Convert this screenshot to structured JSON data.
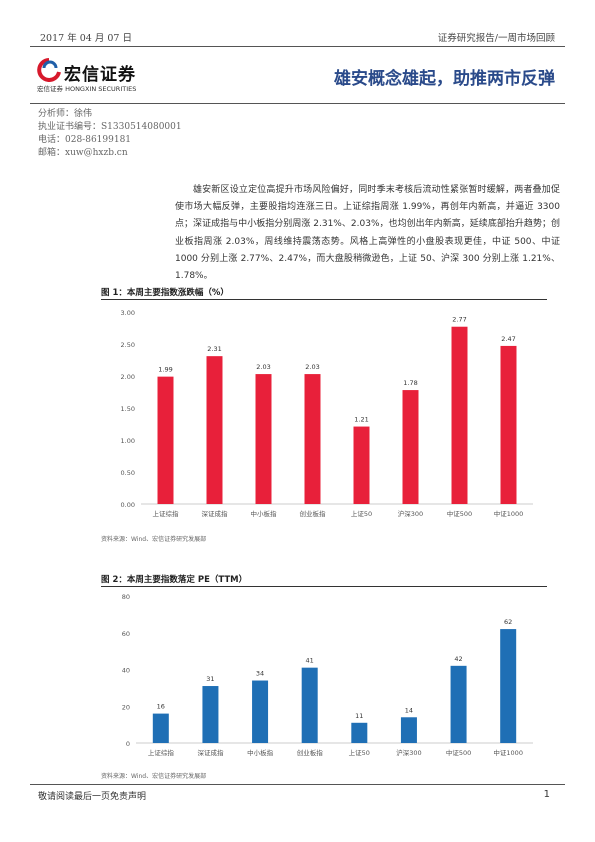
{
  "header": {
    "date": "2017 年 04 月 07 日",
    "category": "证券研究报告/一周市场回顾"
  },
  "logo": {
    "name": "宏信证券",
    "subtitle": "宏信证券 HONGXIN SECURITIES"
  },
  "title": "雄安概念雄起，助推两市反弹",
  "analyst": {
    "name_line": "分析师：徐伟",
    "cert_line": "执业证书编号：S1330514080001",
    "phone_line": "电话：028-86199181",
    "email_line": "邮箱：xuw@hxzb.cn"
  },
  "summary": "雄安新区设立定位高提升市场风险偏好，同时季末考核后流动性紧张暂时缓解，两者叠加促使市场大幅反弹，主要股指均连涨三日。上证综指周涨 1.99%，再创年内新高，并逼近 3300 点；深证成指与中小板指分别周涨 2.31%、2.03%，也均创出年内新高，延续底部抬升趋势；创业板指周涨 2.03%，周线维持震荡态势。风格上高弹性的小盘股表现更佳，中证 500、中证 1000 分别上涨 2.77%、2.47%，而大盘股稍微逊色，上证 50、沪深 300 分别上涨 1.21%、1.78%。",
  "figures": [
    {
      "title": "图 1：本周主要指数涨跌幅（%）",
      "source": "资料来源：Wind、宏信证券研究发展部"
    },
    {
      "title": "图 2：本周主要指数落定 PE（TTM）",
      "source": "资料来源：Wind、宏信证券研究发展部"
    }
  ],
  "chart_data": [
    {
      "type": "bar",
      "title": "图 1：本周主要指数涨跌幅（%）",
      "categories": [
        "上证综指",
        "深证成指",
        "中小板指",
        "创业板指",
        "上证50",
        "沪深300",
        "中证500",
        "中证1000"
      ],
      "values": [
        1.99,
        2.31,
        2.03,
        2.03,
        1.21,
        1.78,
        2.77,
        2.47
      ],
      "labels": [
        "1.99",
        "2.31",
        "2.03",
        "2.03",
        "1.21",
        "1.78",
        "2.77",
        "2.47"
      ],
      "yticks": [
        "0.00",
        "0.50",
        "1.00",
        "1.50",
        "2.00",
        "2.50",
        "3.00"
      ],
      "ylim": [
        0,
        3
      ],
      "color": "#e8203a",
      "grid": false
    },
    {
      "type": "bar",
      "title": "图 2：本周主要指数落定 PE（TTM）",
      "categories": [
        "上证综指",
        "深证成指",
        "中小板指",
        "创业板指",
        "上证50",
        "沪深300",
        "中证500",
        "中证1000"
      ],
      "values": [
        16,
        31,
        34,
        41,
        11,
        14,
        42,
        62
      ],
      "labels": [
        "16",
        "31",
        "34",
        "41",
        "11",
        "14",
        "42",
        "62"
      ],
      "yticks": [
        "0",
        "20",
        "40",
        "60",
        "80"
      ],
      "ylim": [
        0,
        80
      ],
      "color": "#1f6fb5",
      "grid": false
    }
  ],
  "footer": {
    "disclaimer": "敬请阅读最后一页免责声明",
    "page": "1"
  }
}
